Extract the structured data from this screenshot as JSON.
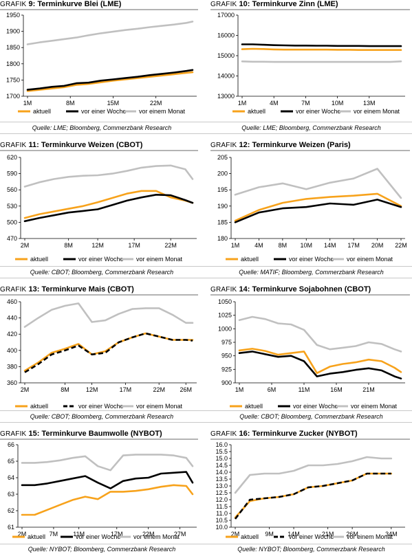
{
  "sources": {
    "row1": "Quelle: LME; Bloomberg, Commerzbank Research",
    "row2": "Quelle: CBOT; Bloomberg, Commerzbank Research",
    "row2r": "Quelle: MATIF; Bloomberg, Commerzbank Research",
    "row3": "Quelle: CBOT; Bloomberg, Commerzbank Research",
    "row3r": "Quelle: CBOT; Bloomberg, Commerzbank Research",
    "row4": "Quelle: NYBOT; Bloomberg, Commerzbank Research",
    "row4r": "Quelle: NYBOT; Bloomberg, Commerzbank Research"
  },
  "colors": {
    "aktuell": "#f7a21b",
    "woche": "#000000",
    "monat": "#c0c0c0"
  },
  "chart_data": [
    {
      "id": "g9",
      "type": "line",
      "prefix": "GRAFIK",
      "number": "9:",
      "title": "Terminkurve Blei (LME)",
      "ylim": [
        1700,
        1950
      ],
      "yticks": [
        "1700",
        "1750",
        "1800",
        "1850",
        "1900",
        "1950"
      ],
      "xticks": [
        "1M",
        "8M",
        "15M",
        "22M"
      ],
      "xtick_pos": [
        0,
        7,
        14,
        21
      ],
      "xmax": 27,
      "dashed": false,
      "series": [
        {
          "name": "aktuell",
          "key": "aktuell",
          "x": [
            0,
            2,
            4,
            6,
            8,
            10,
            12,
            14,
            16,
            18,
            20,
            22,
            24,
            26,
            27
          ],
          "values": [
            1716,
            1720,
            1724,
            1728,
            1735,
            1738,
            1743,
            1748,
            1752,
            1756,
            1760,
            1764,
            1768,
            1772,
            1774
          ]
        },
        {
          "name": "vor einer Woche",
          "key": "woche",
          "x": [
            0,
            2,
            4,
            6,
            8,
            10,
            12,
            14,
            16,
            18,
            20,
            22,
            24,
            26,
            27
          ],
          "values": [
            1720,
            1724,
            1729,
            1732,
            1740,
            1742,
            1748,
            1752,
            1756,
            1760,
            1765,
            1769,
            1773,
            1778,
            1781
          ]
        },
        {
          "name": "vor einem Monat",
          "key": "monat",
          "x": [
            0,
            2,
            4,
            6,
            8,
            10,
            12,
            14,
            16,
            18,
            20,
            22,
            24,
            26,
            27
          ],
          "values": [
            1860,
            1866,
            1871,
            1876,
            1881,
            1888,
            1894,
            1899,
            1904,
            1908,
            1913,
            1917,
            1921,
            1926,
            1930
          ]
        }
      ]
    },
    {
      "id": "g10",
      "type": "line",
      "prefix": "GRAFIK",
      "number": "10:",
      "title": "Terminkurve Zinn (LME)",
      "ylim": [
        13000,
        17000
      ],
      "yticks": [
        "13000",
        "14000",
        "15000",
        "16000",
        "17000"
      ],
      "xticks": [
        "1M",
        "4M",
        "7M",
        "10M",
        "13M"
      ],
      "xtick_pos": [
        0,
        3,
        6,
        9,
        12
      ],
      "xmax": 15,
      "dashed": false,
      "series": [
        {
          "name": "aktuell",
          "key": "aktuell",
          "x": [
            0,
            1,
            2,
            3,
            4,
            5,
            6,
            7,
            8,
            9,
            10,
            11,
            12,
            13,
            14,
            15
          ],
          "values": [
            15320,
            15340,
            15330,
            15310,
            15300,
            15300,
            15300,
            15300,
            15300,
            15290,
            15290,
            15280,
            15280,
            15280,
            15280,
            15280
          ]
        },
        {
          "name": "vor einer Woche",
          "key": "woche",
          "x": [
            0,
            1,
            2,
            3,
            4,
            5,
            6,
            7,
            8,
            9,
            10,
            11,
            12,
            13,
            14,
            15
          ],
          "values": [
            15560,
            15560,
            15540,
            15520,
            15510,
            15500,
            15500,
            15490,
            15490,
            15480,
            15480,
            15480,
            15470,
            15470,
            15470,
            15470
          ]
        },
        {
          "name": "vor einem Monat",
          "key": "monat",
          "x": [
            0,
            1,
            2,
            3,
            4,
            5,
            6,
            7,
            8,
            9,
            10,
            11,
            12,
            13,
            14,
            15
          ],
          "values": [
            14720,
            14700,
            14700,
            14690,
            14690,
            14690,
            14690,
            14690,
            14690,
            14690,
            14690,
            14690,
            14690,
            14690,
            14690,
            14720
          ]
        }
      ]
    },
    {
      "id": "g11",
      "type": "line",
      "prefix": "GRAFIK",
      "number": "11:",
      "title": "Terminkurve Weizen (CBOT)",
      "ylim": [
        470,
        620
      ],
      "yticks": [
        "470",
        "500",
        "530",
        "560",
        "590",
        "620"
      ],
      "xticks": [
        "2M",
        "8M",
        "12M",
        "17M",
        "22M"
      ],
      "xtick_pos": [
        0,
        6,
        10,
        15,
        20
      ],
      "xmax": 23,
      "dashed": false,
      "series": [
        {
          "name": "aktuell",
          "key": "aktuell",
          "x": [
            0,
            2,
            4,
            6,
            8,
            10,
            12,
            14,
            16,
            18,
            20,
            22,
            23
          ],
          "values": [
            508,
            515,
            520,
            525,
            530,
            537,
            545,
            553,
            558,
            558,
            546,
            540,
            536
          ]
        },
        {
          "name": "vor einer Woche",
          "key": "woche",
          "x": [
            0,
            2,
            4,
            6,
            8,
            10,
            12,
            14,
            16,
            18,
            20,
            22,
            23
          ],
          "values": [
            502,
            508,
            513,
            518,
            521,
            524,
            532,
            540,
            546,
            551,
            550,
            541,
            536
          ]
        },
        {
          "name": "vor einem Monat",
          "key": "monat",
          "x": [
            0,
            2,
            4,
            6,
            8,
            10,
            12,
            14,
            16,
            18,
            20,
            22,
            23
          ],
          "values": [
            566,
            574,
            580,
            584,
            586,
            587,
            590,
            595,
            601,
            604,
            605,
            598,
            580
          ]
        }
      ]
    },
    {
      "id": "g12",
      "type": "line",
      "prefix": "GRAFIK",
      "number": "12:",
      "title": "Terminkurve Weizen (Paris)",
      "ylim": [
        180,
        205
      ],
      "yticks": [
        "180",
        "185",
        "190",
        "195",
        "200",
        "205"
      ],
      "xticks": [
        "1M",
        "4M",
        "8M",
        "10M",
        "14M",
        "17M",
        "20M",
        "22M"
      ],
      "xtick_pos": [
        0,
        1,
        2,
        3,
        4,
        5,
        6,
        7
      ],
      "xmax": 7,
      "dashed": false,
      "series": [
        {
          "name": "aktuell",
          "key": "aktuell",
          "x": [
            0,
            1,
            2,
            3,
            4,
            5,
            6,
            7
          ],
          "values": [
            185.5,
            188.8,
            191.0,
            192.2,
            192.8,
            193.2,
            193.8,
            190.0
          ]
        },
        {
          "name": "vor einer Woche",
          "key": "woche",
          "x": [
            0,
            1,
            2,
            3,
            4,
            5,
            6,
            7
          ],
          "values": [
            185.0,
            188.0,
            189.3,
            189.7,
            190.8,
            190.4,
            192.0,
            189.7
          ]
        },
        {
          "name": "vor einem Monat",
          "key": "monat",
          "x": [
            0,
            1,
            2,
            3,
            4,
            5,
            6,
            7
          ],
          "values": [
            193.5,
            195.8,
            197.0,
            195.2,
            197.2,
            198.5,
            201.5,
            192.5
          ]
        }
      ]
    },
    {
      "id": "g13",
      "type": "line",
      "prefix": "GRAFIK",
      "number": "13:",
      "title": "Terminkurve Mais (CBOT)",
      "ylim": [
        360,
        460
      ],
      "yticks": [
        "360",
        "380",
        "400",
        "420",
        "440",
        "460"
      ],
      "xticks": [
        "2M",
        "8M",
        "12M",
        "17M",
        "22M",
        "26M"
      ],
      "xtick_pos": [
        0,
        6,
        10,
        15,
        20,
        24
      ],
      "xmax": 25,
      "dashed": true,
      "series": [
        {
          "name": "aktuell",
          "key": "aktuell",
          "x": [
            0,
            2,
            4,
            6,
            8,
            10,
            12,
            14,
            16,
            18,
            20,
            22,
            24,
            25
          ],
          "values": [
            375,
            385,
            397,
            402,
            408,
            395,
            399,
            410,
            416,
            421,
            417,
            413,
            413,
            413
          ]
        },
        {
          "name": "vor einer Woche",
          "key": "woche",
          "x": [
            0,
            2,
            4,
            6,
            8,
            10,
            12,
            14,
            16,
            18,
            20,
            22,
            24,
            25
          ],
          "values": [
            373,
            383,
            395,
            400,
            406,
            395,
            397,
            410,
            416,
            421,
            417,
            413,
            413,
            412
          ]
        },
        {
          "name": "vor einem Monat",
          "key": "monat",
          "x": [
            0,
            2,
            4,
            6,
            8,
            10,
            12,
            14,
            16,
            18,
            20,
            22,
            24,
            25
          ],
          "values": [
            429,
            440,
            450,
            455,
            458,
            435,
            437,
            445,
            451,
            452,
            452,
            444,
            434,
            434
          ]
        }
      ]
    },
    {
      "id": "g14",
      "type": "line",
      "prefix": "GRAFIK",
      "number": "14:",
      "title": "Terminkurve Sojabohnen (CBOT)",
      "ylim": [
        900,
        1050
      ],
      "yticks": [
        "900",
        "925",
        "950",
        "975",
        "1000",
        "1025",
        "1050"
      ],
      "xticks": [
        "1M",
        "6M",
        "11M",
        "16M",
        "21M"
      ],
      "xtick_pos": [
        0,
        5,
        10,
        15,
        20
      ],
      "xmax": 25,
      "dashed": false,
      "series": [
        {
          "name": "aktuell",
          "key": "aktuell",
          "x": [
            0,
            2,
            4,
            6,
            8,
            10,
            12,
            14,
            16,
            18,
            20,
            22,
            24,
            25
          ],
          "values": [
            960,
            963,
            959,
            952,
            955,
            958,
            918,
            930,
            935,
            938,
            943,
            940,
            928,
            920
          ]
        },
        {
          "name": "vor einer Woche",
          "key": "woche",
          "x": [
            0,
            2,
            4,
            6,
            8,
            10,
            12,
            14,
            16,
            18,
            20,
            22,
            24,
            25
          ],
          "values": [
            955,
            958,
            953,
            948,
            950,
            940,
            912,
            917,
            920,
            924,
            927,
            923,
            912,
            908
          ]
        },
        {
          "name": "vor einem Monat",
          "key": "monat",
          "x": [
            0,
            2,
            4,
            6,
            8,
            10,
            12,
            14,
            16,
            18,
            20,
            22,
            24,
            25
          ],
          "values": [
            1016,
            1022,
            1018,
            1010,
            1008,
            998,
            970,
            962,
            965,
            968,
            975,
            972,
            962,
            958
          ]
        }
      ]
    },
    {
      "id": "g15",
      "type": "line",
      "prefix": "GRAFIK",
      "number": "15:",
      "title": "Terminkurve Baumwolle (NYBOT)",
      "ylim": [
        61,
        66
      ],
      "yticks": [
        "61",
        "62",
        "63",
        "64",
        "65",
        "66"
      ],
      "xticks": [
        "2M",
        "7M",
        "11M",
        "17M",
        "22M",
        "27M"
      ],
      "xtick_pos": [
        0,
        5,
        9,
        15,
        20,
        25
      ],
      "xmax": 27,
      "dashed": false,
      "series": [
        {
          "name": "aktuell",
          "key": "aktuell",
          "x": [
            0,
            2,
            4,
            6,
            8,
            10,
            12,
            14,
            16,
            18,
            20,
            22,
            24,
            26,
            27
          ],
          "values": [
            61.75,
            61.75,
            62.05,
            62.35,
            62.65,
            62.85,
            62.7,
            63.15,
            63.15,
            63.2,
            63.3,
            63.45,
            63.55,
            63.5,
            63.0
          ]
        },
        {
          "name": "vor einer Woche",
          "key": "woche",
          "x": [
            0,
            2,
            4,
            6,
            8,
            10,
            12,
            14,
            16,
            18,
            20,
            22,
            24,
            26,
            27
          ],
          "values": [
            63.55,
            63.55,
            63.65,
            63.8,
            63.95,
            64.1,
            63.7,
            63.35,
            63.8,
            63.95,
            64.0,
            64.25,
            64.3,
            64.35,
            63.7
          ]
        },
        {
          "name": "vor einem Monat",
          "key": "monat",
          "x": [
            0,
            2,
            4,
            6,
            8,
            10,
            12,
            14,
            16,
            18,
            20,
            22,
            24,
            26,
            27
          ],
          "values": [
            64.9,
            64.9,
            64.95,
            65.05,
            65.2,
            65.3,
            64.7,
            64.45,
            65.35,
            65.4,
            65.4,
            65.4,
            65.35,
            65.2,
            64.7
          ]
        }
      ]
    },
    {
      "id": "g16",
      "type": "line",
      "prefix": "GRAFIK",
      "number": "16:",
      "title": "Terminkurve Zucker (NYBOT)",
      "ylim": [
        10.0,
        16.0
      ],
      "yticks": [
        "10.0",
        "10.5",
        "11.0",
        "11.5",
        "12.0",
        "12.5",
        "13.0",
        "13.5",
        "14.0",
        "14.5",
        "15.0",
        "15.5",
        "16.0"
      ],
      "xticks": [
        "2M",
        "9M",
        "14M",
        "21M",
        "26M",
        "34M"
      ],
      "xtick_pos": [
        0,
        7,
        12,
        19,
        24,
        32
      ],
      "xmax": 34,
      "dashed": true,
      "series": [
        {
          "name": "aktuell",
          "key": "aktuell",
          "x": [
            0,
            3,
            6,
            9,
            12,
            15,
            18,
            21,
            24,
            27,
            30,
            32
          ],
          "values": [
            10.7,
            11.9,
            12.1,
            12.2,
            12.4,
            12.9,
            13.0,
            13.2,
            13.4,
            13.9,
            13.9,
            13.9
          ]
        },
        {
          "name": "vor einer Woche",
          "key": "woche",
          "x": [
            0,
            3,
            6,
            9,
            12,
            15,
            18,
            21,
            24,
            27,
            30,
            32
          ],
          "values": [
            10.6,
            12.0,
            12.1,
            12.2,
            12.4,
            12.9,
            13.0,
            13.2,
            13.4,
            13.9,
            13.9,
            13.9
          ]
        },
        {
          "name": "vor einem Monat",
          "key": "monat",
          "x": [
            0,
            3,
            6,
            9,
            12,
            15,
            18,
            21,
            24,
            27,
            30,
            32
          ],
          "values": [
            12.5,
            13.8,
            13.9,
            13.9,
            14.1,
            14.5,
            14.5,
            14.6,
            14.8,
            15.1,
            15.0,
            15.0
          ]
        }
      ]
    }
  ]
}
